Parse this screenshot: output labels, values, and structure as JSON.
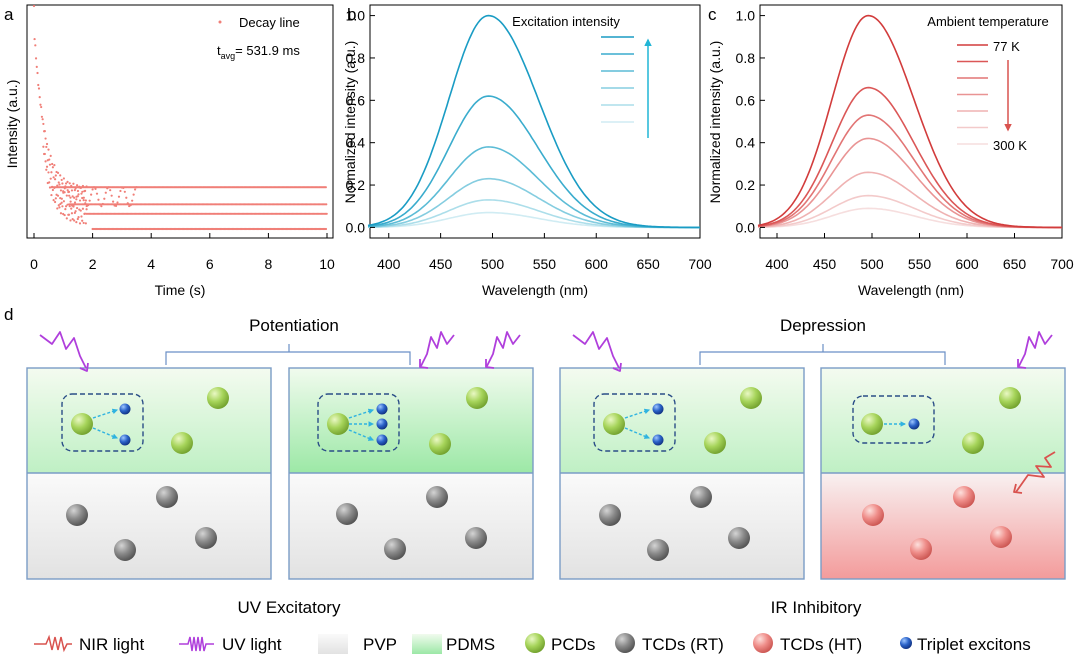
{
  "panel_letters": {
    "a": "a",
    "b": "b",
    "c": "c",
    "d": "d"
  },
  "chart_data": [
    {
      "type": "scatter",
      "panel": "a",
      "xlabel": "Time (s)",
      "ylabel": "Intensity (a.u.)",
      "xlim": [
        0,
        10
      ],
      "xticks": [
        "0",
        "2",
        "4",
        "6",
        "8",
        "10"
      ],
      "legend": "Decay line",
      "annotation": "t",
      "annotation_sub": "avg",
      "annotation_value": "= 531.9 ms",
      "color": "#f07f78",
      "y_levels": [
        0.22,
        0.13,
        0.08,
        0.0
      ],
      "decay_peak": 0.85
    },
    {
      "type": "line",
      "panel": "b",
      "xlabel": "Wavelength (nm)",
      "ylabel": "Normalized intensity (a.u.)",
      "xlim": [
        380,
        700
      ],
      "ylim": [
        -0.05,
        1.05
      ],
      "xticks": [
        "400",
        "450",
        "500",
        "550",
        "600",
        "650",
        "700"
      ],
      "yticks": [
        "0.0",
        "0.2",
        "0.4",
        "0.6",
        "0.8",
        "1.0"
      ],
      "legend_title": "Excitation intensity",
      "peak_nm": 496,
      "series_peaks": [
        1.0,
        0.62,
        0.38,
        0.23,
        0.13,
        0.07
      ],
      "colors": [
        "#1a9cc4",
        "#3aaccd",
        "#5cbcd6",
        "#85cde0",
        "#acdeea",
        "#d0ecf3"
      ]
    },
    {
      "type": "line",
      "panel": "c",
      "xlabel": "Wavelength (nm)",
      "ylabel": "Normalized intensity (a.u.)",
      "xlim": [
        380,
        700
      ],
      "ylim": [
        -0.05,
        1.05
      ],
      "xticks": [
        "400",
        "450",
        "500",
        "550",
        "600",
        "650",
        "700"
      ],
      "yticks": [
        "0.0",
        "0.2",
        "0.4",
        "0.6",
        "0.8",
        "1.0"
      ],
      "legend_title": "Ambient temperature",
      "legend_top": "77 K",
      "legend_bottom": "300 K",
      "peak_nm": 496,
      "series_peaks": [
        1.0,
        0.66,
        0.53,
        0.42,
        0.26,
        0.15,
        0.09
      ],
      "colors": [
        "#d23c3c",
        "#db5757",
        "#e27575",
        "#e99494",
        "#efb2b2",
        "#f3caca",
        "#f6dede"
      ]
    }
  ],
  "schematic": {
    "potentiation_label": "Potentiation",
    "depression_label": "Depression",
    "uv_excitatory_label": "UV Excitatory",
    "ir_inhibitory_label": "IR Inhibitory"
  },
  "legend": {
    "nir_light": "NIR light",
    "uv_light": "UV light",
    "pvp": "PVP",
    "pdms": "PDMS",
    "pcds": "PCDs",
    "tcds_rt": "TCDs (RT)",
    "tcds_ht": "TCDs (HT)",
    "triplet_excitons": "Triplet excitons"
  }
}
